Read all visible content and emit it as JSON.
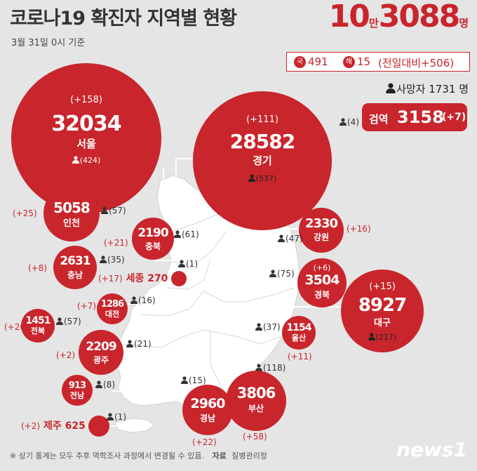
{
  "header": {
    "title": "코로나19 확진자 지역별 현황",
    "date": "3월 31일 0시 기준",
    "total_big_1": "10",
    "total_small_1": "만",
    "total_big_2": "3088",
    "total_small_2": "명"
  },
  "inflow": {
    "domestic_tag": "국",
    "domestic_value": "491",
    "overseas_tag": "해",
    "overseas_value": "15",
    "daily_change": "(전일대비+506)"
  },
  "deaths": {
    "label": "사망자 1731 명"
  },
  "quarantine": {
    "deaths": "(4)",
    "label": "검역",
    "value": "3158",
    "increase": "(+7)"
  },
  "regions": [
    {
      "name": "서울",
      "value": "32034",
      "increase": "(+158)",
      "deaths": "(424)"
    },
    {
      "name": "경기",
      "value": "28582",
      "increase": "(+111)",
      "deaths": "(537)"
    },
    {
      "name": "인천",
      "value": "5058",
      "increase": "(+25)",
      "deaths": "(57)"
    },
    {
      "name": "강원",
      "value": "2330",
      "increase": "(+16)",
      "deaths": "(47)"
    },
    {
      "name": "충북",
      "value": "2190",
      "increase": "(+21)",
      "deaths": "(61)"
    },
    {
      "name": "충남",
      "value": "2631",
      "increase": "(+8)",
      "deaths": "(35)"
    },
    {
      "name": "세종",
      "value": "270",
      "increase": "(+17)",
      "deaths": "(1)"
    },
    {
      "name": "대전",
      "value": "1286",
      "increase": "(+7)",
      "deaths": "(16)"
    },
    {
      "name": "경북",
      "value": "3504",
      "increase": "(+6)",
      "deaths": "(75)"
    },
    {
      "name": "대구",
      "value": "8927",
      "increase": "(+15)",
      "deaths": "(217)"
    },
    {
      "name": "전북",
      "value": "1451",
      "increase": "(+20)",
      "deaths": "(57)"
    },
    {
      "name": "울산",
      "value": "1154",
      "increase": "(+11)",
      "deaths": "(37)"
    },
    {
      "name": "광주",
      "value": "2209",
      "increase": "(+2)",
      "deaths": "(21)"
    },
    {
      "name": "전남",
      "value": "913",
      "increase": "",
      "deaths": "(8)"
    },
    {
      "name": "경남",
      "value": "2960",
      "increase": "(+22)",
      "deaths": "(15)"
    },
    {
      "name": "부산",
      "value": "3806",
      "increase": "(+58)",
      "deaths": "(118)"
    },
    {
      "name": "제주",
      "value": "625",
      "increase": "(+2)",
      "deaths": "(1)"
    }
  ],
  "footer": {
    "note": "※ 상기 통계는 모두 추후 역학조사 과정에서 변경될 수 있음.",
    "source_label": "자료",
    "source": "질병관리청",
    "logo": "news1"
  },
  "colors": {
    "accent": "#c9252c",
    "background": "#e5e5e5",
    "map": "#ffffff"
  },
  "icons": {
    "person": "person-icon"
  }
}
